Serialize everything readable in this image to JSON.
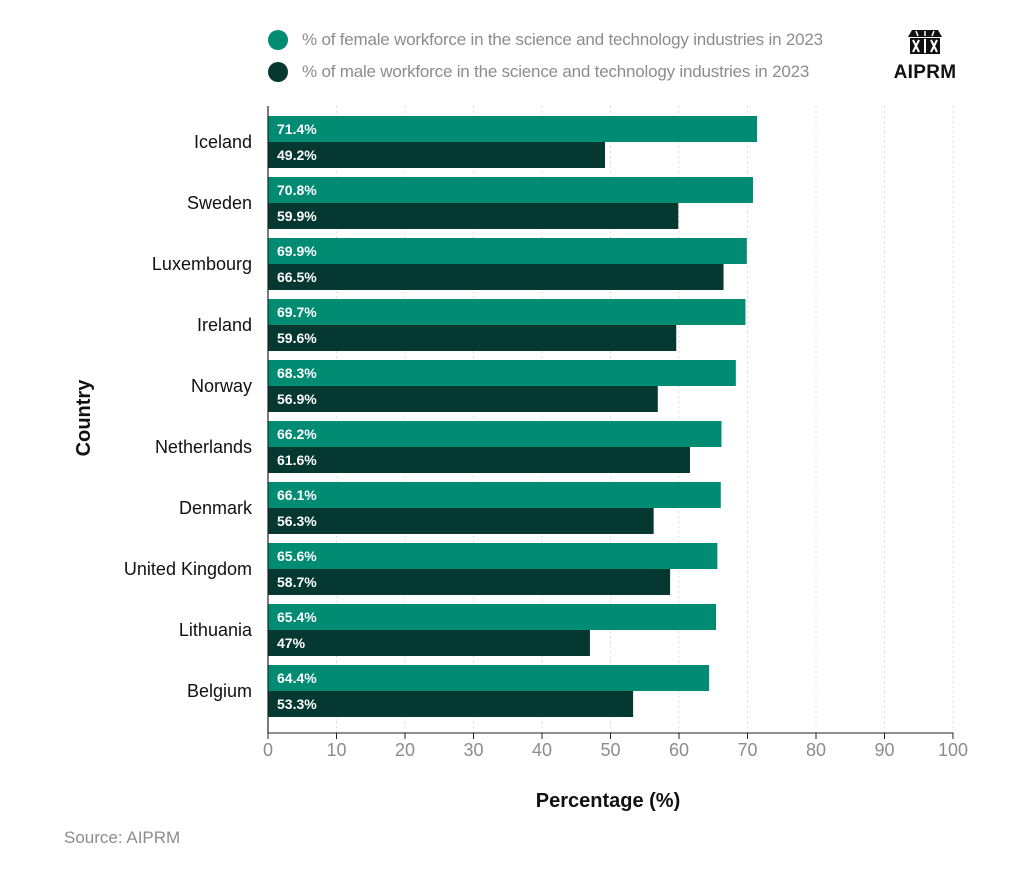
{
  "legend": {
    "female_label": "% of female workforce in the science and technology industries in 2023",
    "male_label": "% of male workforce in the science and technology industries in 2023"
  },
  "logo": {
    "text": "AIPRM"
  },
  "source": "Source: AIPRM",
  "colors": {
    "female": "#008b73",
    "male": "#043831",
    "axis_text": "#8c8c8c",
    "grid": "#dddddd"
  },
  "chart_data": {
    "type": "bar",
    "orientation": "horizontal",
    "categories": [
      "Iceland",
      "Sweden",
      "Luxembourg",
      "Ireland",
      "Norway",
      "Netherlands",
      "Denmark",
      "United Kingdom",
      "Lithuania",
      "Belgium"
    ],
    "series": [
      {
        "name": "% of female workforce in the science and technology industries in 2023",
        "values": [
          71.4,
          70.8,
          69.9,
          69.7,
          68.3,
          66.2,
          66.1,
          65.6,
          65.4,
          64.4
        ],
        "labels": [
          "71.4%",
          "70.8%",
          "69.9%",
          "69.7%",
          "68.3%",
          "66.2%",
          "66.1%",
          "65.6%",
          "65.4%",
          "64.4%"
        ]
      },
      {
        "name": "% of male workforce in the science and technology industries in 2023",
        "values": [
          49.2,
          59.9,
          66.5,
          59.6,
          56.9,
          61.6,
          56.3,
          58.7,
          47,
          53.3
        ],
        "labels": [
          "49.2%",
          "59.9%",
          "66.5%",
          "59.6%",
          "56.9%",
          "61.6%",
          "56.3%",
          "58.7%",
          "47%",
          "53.3%"
        ]
      }
    ],
    "xlabel": "Percentage (%)",
    "ylabel": "Country",
    "xlim": [
      0,
      100
    ],
    "xticks": [
      "0",
      "10",
      "20",
      "30",
      "40",
      "50",
      "60",
      "70",
      "80",
      "90",
      "100"
    ],
    "grid": "vertical dashed",
    "legend_position": "top"
  }
}
